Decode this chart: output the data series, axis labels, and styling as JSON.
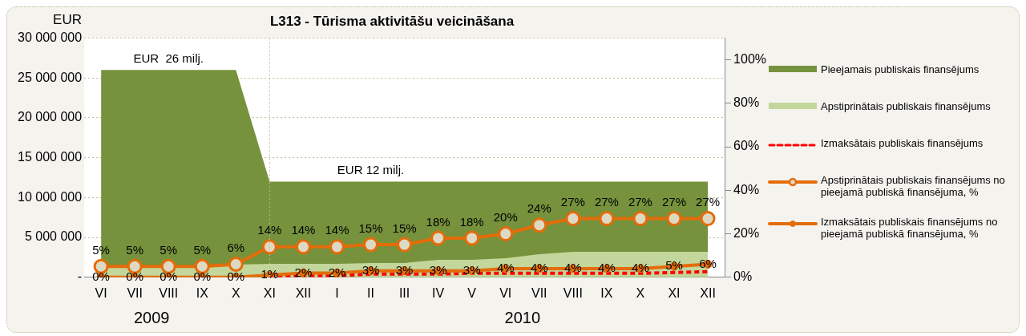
{
  "chart_data": {
    "type": "area",
    "title": "L313 - Tūrisma aktivitāšu veicināšana",
    "ylabel": "EUR",
    "categories": [
      "VI",
      "VII",
      "VIII",
      "IX",
      "X",
      "XI",
      "XII",
      "I",
      "II",
      "III",
      "IV",
      "V",
      "VI",
      "VII",
      "VIII",
      "IX",
      "X",
      "XI",
      "XII"
    ],
    "series": [
      {
        "name": "Pieejamais publiskais finansējums",
        "color": "#76923c",
        "values": [
          26000000,
          26000000,
          26000000,
          26000000,
          26000000,
          12000000,
          12000000,
          12000000,
          12000000,
          12000000,
          12000000,
          12000000,
          12000000,
          12000000,
          12000000,
          12000000,
          12000000,
          12000000,
          12000000
        ]
      },
      {
        "name": "Apstiprinātais publiskais finansējums",
        "color": "#c3d69b",
        "values": [
          1300000,
          1300000,
          1300000,
          1300000,
          1600000,
          1700000,
          1700000,
          1700000,
          1800000,
          1800000,
          2200000,
          2200000,
          2400000,
          2900000,
          3200000,
          3200000,
          3200000,
          3200000,
          3200000
        ]
      },
      {
        "name": "Izmaksātais publiskais finansējums",
        "type": "line",
        "color": "#ff0000",
        "line_style": "dashed",
        "marker": "none",
        "values": [
          null,
          null,
          null,
          null,
          null,
          100000,
          200000,
          200000,
          400000,
          400000,
          400000,
          500000,
          500000,
          500000,
          500000,
          500000,
          500000,
          600000,
          700000
        ]
      },
      {
        "name": "Apstiprinātais  publiskais finansējums no pieejamā publiskā finansējuma, %",
        "type": "line",
        "axis": "y2",
        "color": "#e46c0a",
        "marker": "circle",
        "values": [
          5,
          5,
          5,
          5,
          6,
          14,
          14,
          14,
          15,
          15,
          18,
          18,
          20,
          24,
          27,
          27,
          27,
          27,
          27
        ],
        "value_labels": [
          "5%",
          "5%",
          "5%",
          "5%",
          "6%",
          "14%",
          "14%",
          "14%",
          "15%",
          "15%",
          "18%",
          "18%",
          "20%",
          "24%",
          "27%",
          "27%",
          "27%",
          "27%",
          "27%"
        ]
      },
      {
        "name": "Izmaksātais  publiskais finansējums no pieejamā publiskā finansējuma, %",
        "type": "line",
        "axis": "y2",
        "color": "#e46c0a",
        "marker": "circle",
        "values": [
          0,
          0,
          0,
          0,
          0,
          1,
          2,
          2,
          3,
          3,
          3,
          3,
          4,
          4,
          4,
          4,
          4,
          5,
          6
        ],
        "value_labels": [
          "0%",
          "0%",
          "0%",
          "0%",
          "0%",
          "1%",
          "2%",
          "2%",
          "3%",
          "3%",
          "3%",
          "3%",
          "4%",
          "4%",
          "4%",
          "4%",
          "4%",
          "5%",
          "6%"
        ]
      }
    ],
    "ylim": [
      0,
      30000000
    ],
    "yticks": [
      {
        "value": 0,
        "label": "-"
      },
      {
        "value": 5000000,
        "label": "5 000 000"
      },
      {
        "value": 10000000,
        "label": "10 000 000"
      },
      {
        "value": 15000000,
        "label": "15 000 000"
      },
      {
        "value": 20000000,
        "label": "20 000 000"
      },
      {
        "value": 25000000,
        "label": "25 000 000"
      },
      {
        "value": 30000000,
        "label": "30 000 000"
      }
    ],
    "y2lim": [
      0,
      110
    ],
    "y2ticks": [
      {
        "value": 0,
        "label": "0%"
      },
      {
        "value": 20,
        "label": "20%"
      },
      {
        "value": 40,
        "label": "40%"
      },
      {
        "value": 60,
        "label": "60%"
      },
      {
        "value": 80,
        "label": "80%"
      },
      {
        "value": 100,
        "label": "100%"
      }
    ],
    "ref_lines": [
      {
        "axis": "x",
        "value": "XI",
        "color": "#c4bd97",
        "line_style": "dotted"
      }
    ],
    "annotations": [
      {
        "text": "EUR  26 milj.",
        "x": "VIII",
        "y": 26000000
      },
      {
        "text": "EUR 12 milj.",
        "x": "II",
        "y": 12000000
      },
      "2009",
      "2010"
    ],
    "grid": "y",
    "legend": "right"
  }
}
